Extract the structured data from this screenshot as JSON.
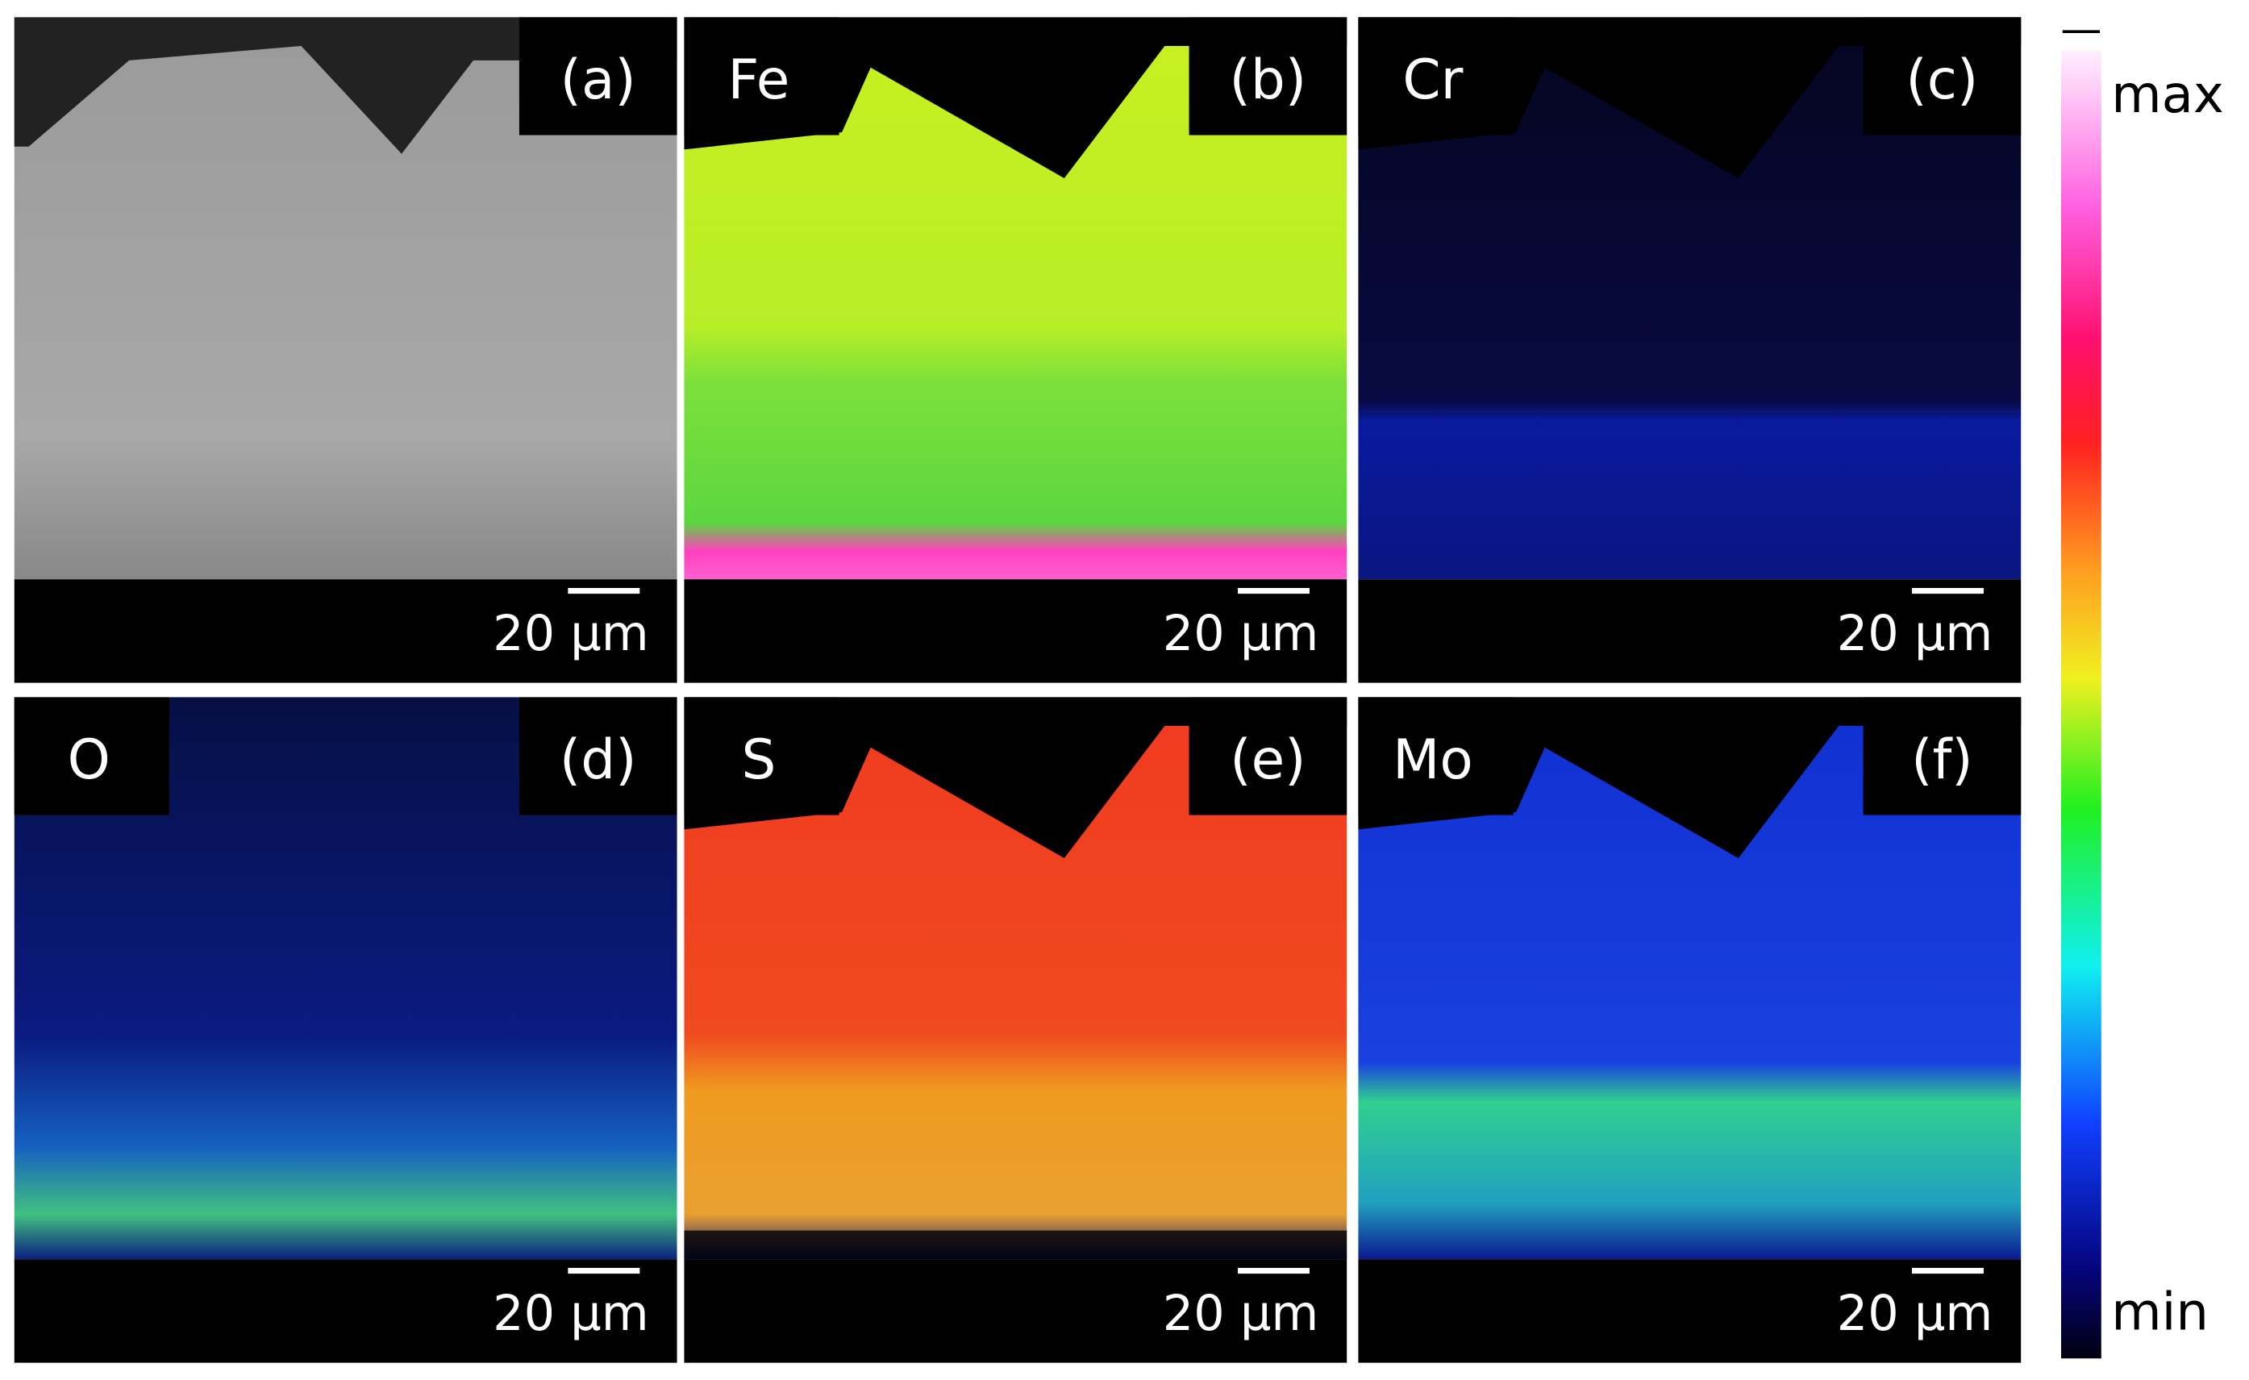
{
  "panels": [
    {
      "letter": "(a)",
      "scale_bar": "20 µm"
    },
    {
      "letter": "(b)",
      "element": "Fe",
      "scale_bar": "20 µm"
    },
    {
      "letter": "(c)",
      "element": "Cr",
      "scale_bar": "20 µm"
    },
    {
      "letter": "(d)",
      "element": "O",
      "scale_bar": "20 µm"
    },
    {
      "letter": "(e)",
      "element": "S",
      "scale_bar": "20 µm"
    },
    {
      "letter": "(f)",
      "element": "Mo",
      "scale_bar": "20 µm"
    }
  ],
  "colorbar": {
    "max_label": "max",
    "min_label": "min"
  }
}
